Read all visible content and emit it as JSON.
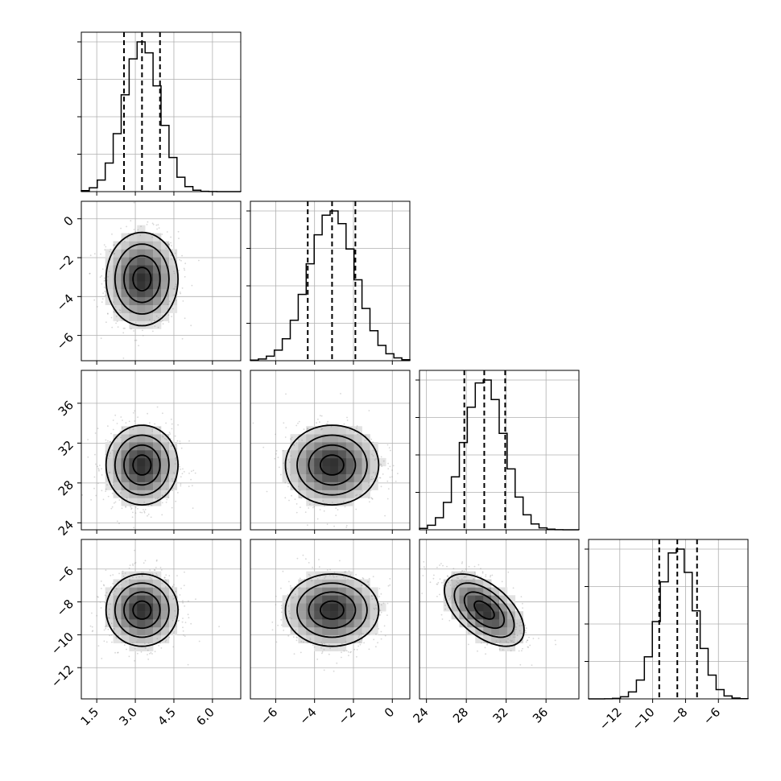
{
  "chart_data": {
    "type": "corner",
    "grid": true,
    "colors": {
      "line": "#000000",
      "grid": "#b0b0b0",
      "points": "#8c8c8c",
      "background": "#ffffff"
    },
    "parameters": [
      {
        "index": 0,
        "range": [
          0.9,
          7.1
        ],
        "ticks": [
          1.5,
          3.0,
          4.5,
          6.0
        ],
        "tick_labels": [
          "1.5",
          "3.0",
          "4.5",
          "6.0"
        ],
        "quantiles": [
          2.56,
          3.26,
          3.96
        ],
        "mean": 3.26,
        "sd": 0.7
      },
      {
        "index": 1,
        "range": [
          -7.3,
          0.9
        ],
        "ticks": [
          -6,
          -4,
          -2,
          0
        ],
        "tick_labels": [
          "−6",
          "−4",
          "−2",
          "0"
        ],
        "quantiles": [
          -4.35,
          -3.1,
          -1.9
        ],
        "mean": -3.1,
        "sd": 1.2
      },
      {
        "index": 2,
        "range": [
          23.3,
          39.3
        ],
        "ticks": [
          24,
          28,
          32,
          36
        ],
        "tick_labels": [
          "24",
          "28",
          "32",
          "36"
        ],
        "quantiles": [
          27.8,
          29.8,
          31.9
        ],
        "mean": 29.8,
        "sd": 2.0
      },
      {
        "index": 3,
        "range": [
          -13.9,
          -4.2
        ],
        "ticks": [
          -12,
          -10,
          -8,
          -6
        ],
        "tick_labels": [
          "−12",
          "−10",
          "−8",
          "−6"
        ],
        "quantiles": [
          -9.6,
          -8.5,
          -7.3
        ],
        "mean": -8.5,
        "sd": 1.1
      }
    ],
    "correlations": [
      {
        "pair": [
          0,
          1
        ],
        "rho": 0.0
      },
      {
        "pair": [
          0,
          2
        ],
        "rho": 0.0
      },
      {
        "pair": [
          1,
          2
        ],
        "rho": 0.0
      },
      {
        "pair": [
          0,
          3
        ],
        "rho": 0.0
      },
      {
        "pair": [
          1,
          3
        ],
        "rho": 0.0
      },
      {
        "pair": [
          2,
          3
        ],
        "rho": -0.55
      }
    ]
  }
}
